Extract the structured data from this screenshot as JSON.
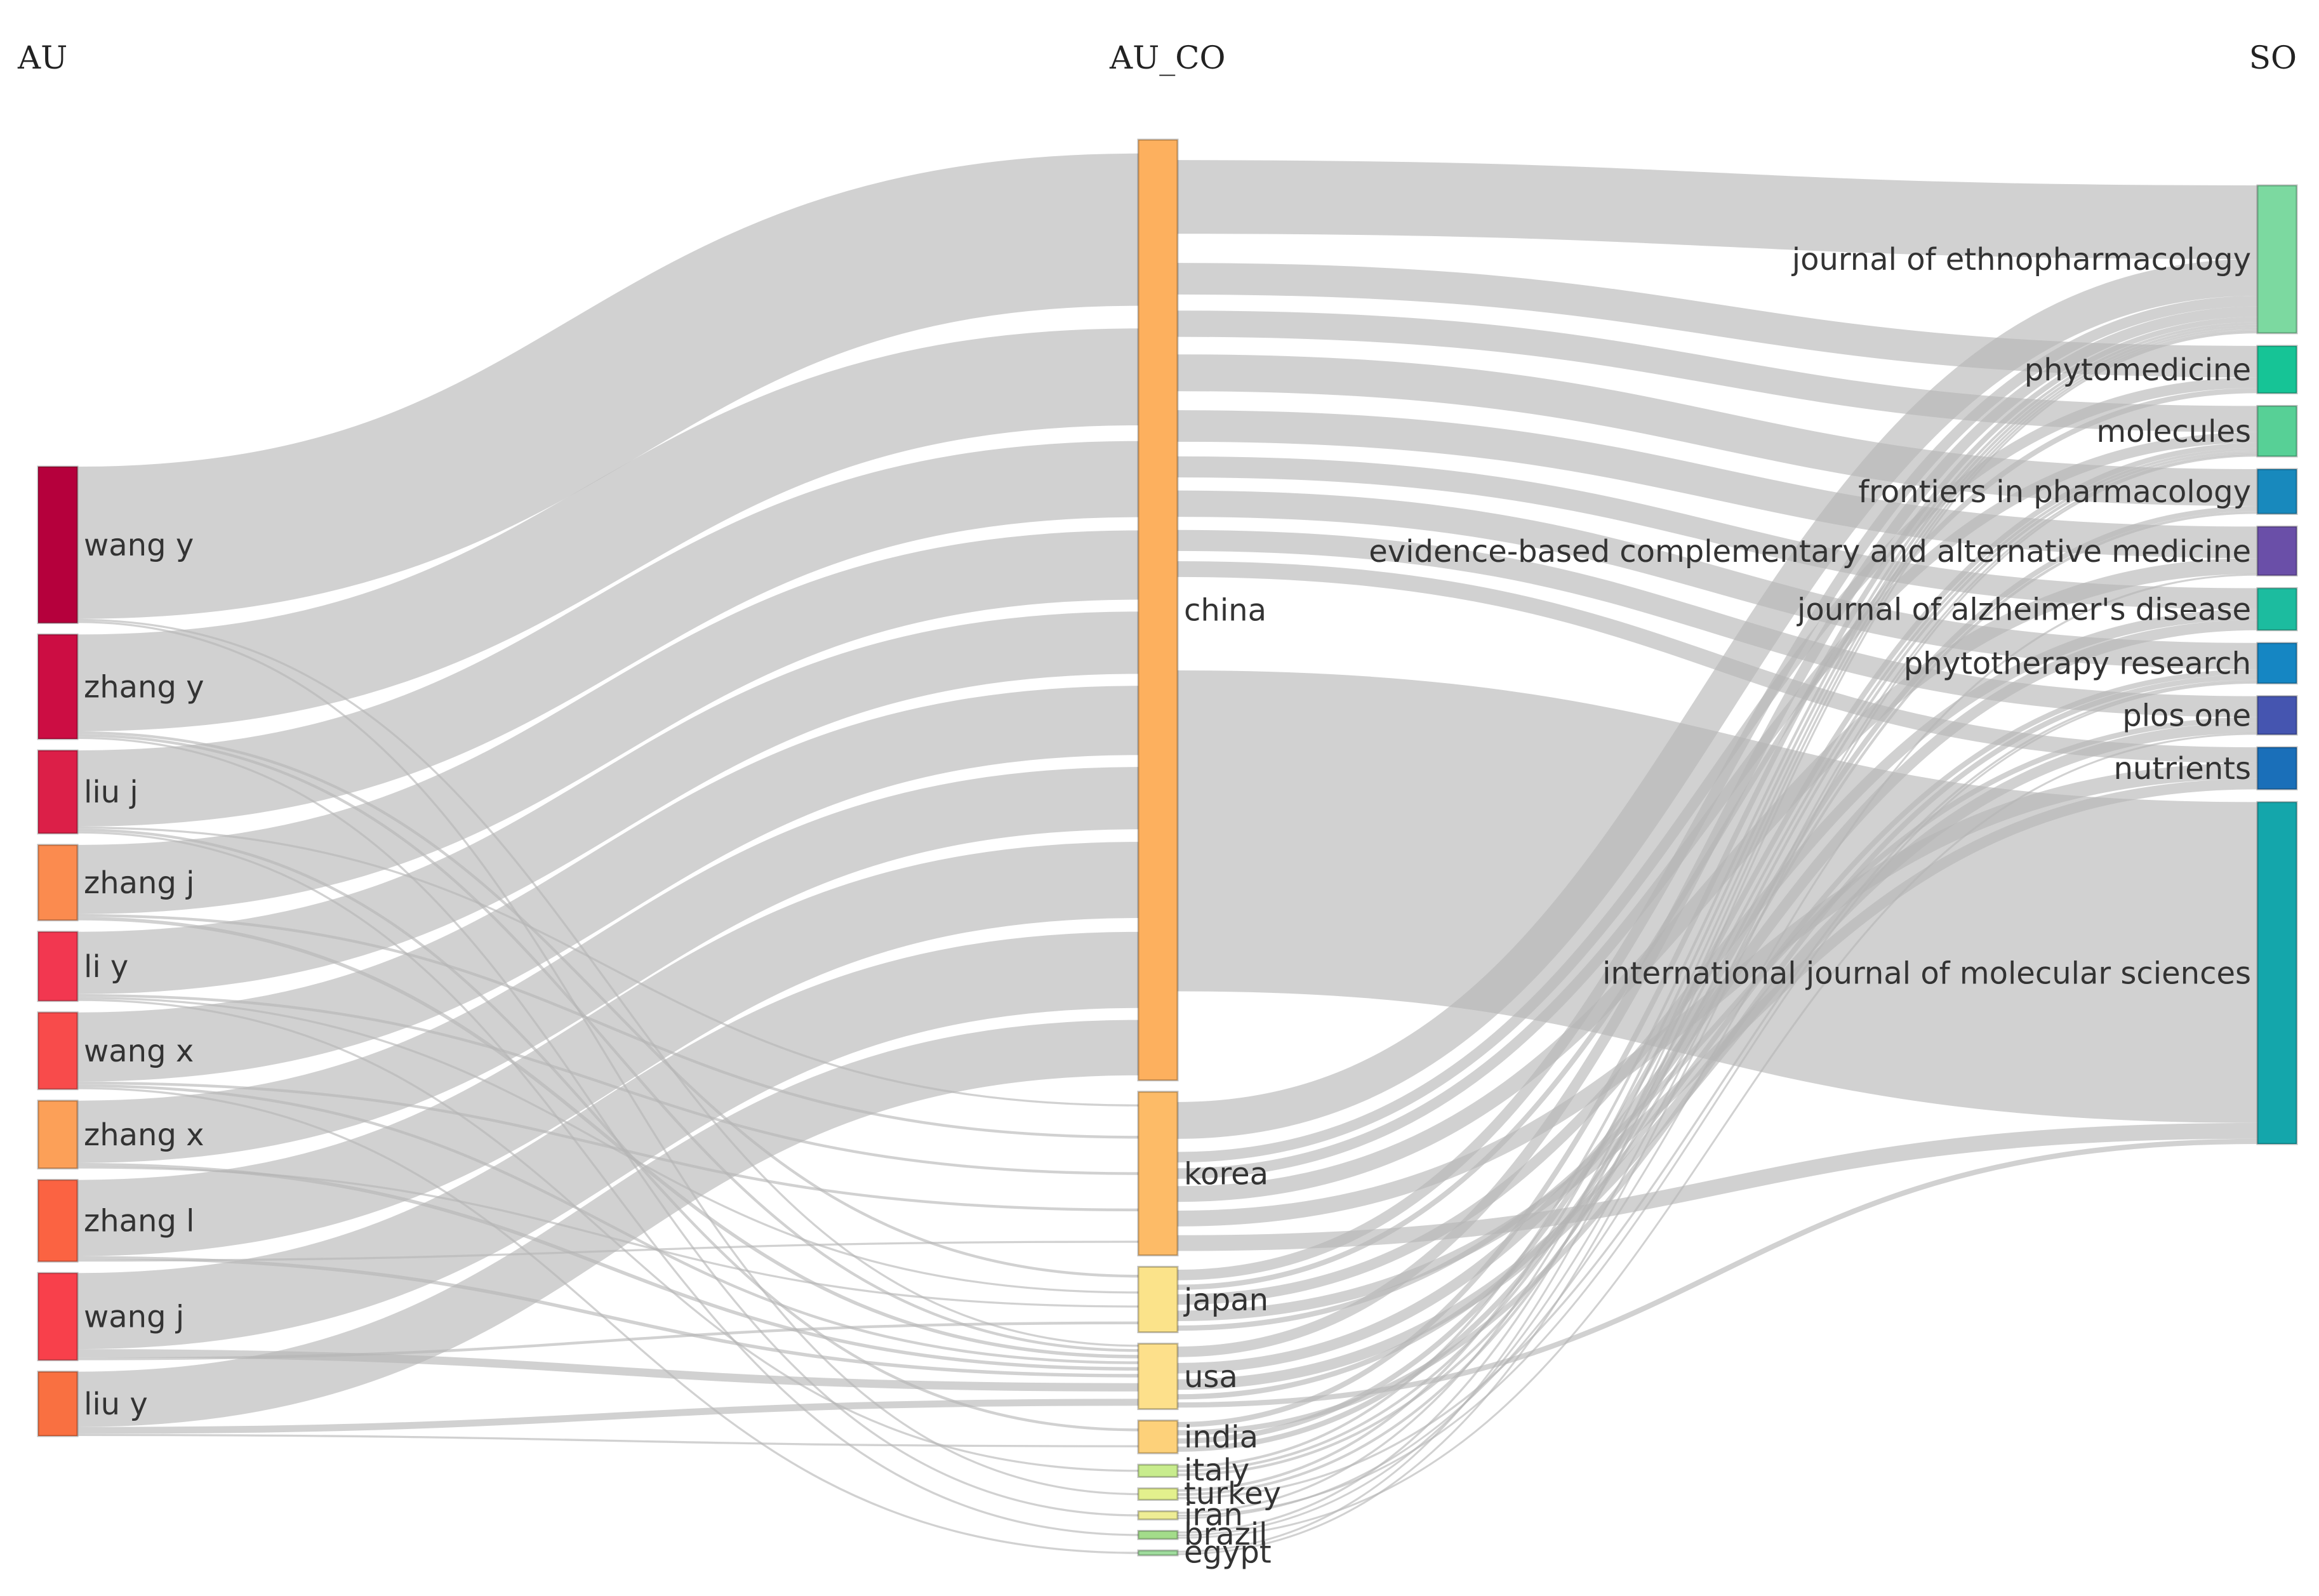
{
  "columns": [
    "AU",
    "AU_CO",
    "SO"
  ],
  "nodes": {
    "AU": [
      {
        "id": "wang y",
        "label": "wang y",
        "color": "#b5003c"
      },
      {
        "id": "zhang y",
        "label": "zhang y",
        "color": "#cc0d43"
      },
      {
        "id": "liu j",
        "label": "liu j",
        "color": "#dc1f48"
      },
      {
        "id": "zhang j",
        "label": "zhang j",
        "color": "#fb8b4f"
      },
      {
        "id": "li y",
        "label": "li y",
        "color": "#f23750"
      },
      {
        "id": "wang x",
        "label": "wang x",
        "color": "#f84b4b"
      },
      {
        "id": "zhang x",
        "label": "zhang x",
        "color": "#fca058"
      },
      {
        "id": "zhang l",
        "label": "zhang l",
        "color": "#fb6342"
      },
      {
        "id": "wang j",
        "label": "wang j",
        "color": "#f8404b"
      },
      {
        "id": "liu y",
        "label": "liu y",
        "color": "#f97041"
      }
    ],
    "AU_CO": [
      {
        "id": "china",
        "label": "china",
        "color": "#fdb05e"
      },
      {
        "id": "korea",
        "label": "korea",
        "color": "#fdbb67"
      },
      {
        "id": "japan",
        "label": "japan",
        "color": "#fbe38a"
      },
      {
        "id": "usa",
        "label": "usa",
        "color": "#fde08b"
      },
      {
        "id": "india",
        "label": "india",
        "color": "#fdd17a"
      },
      {
        "id": "italy",
        "label": "italy",
        "color": "#c8ec8d"
      },
      {
        "id": "turkey",
        "label": "turkey",
        "color": "#e3f08d"
      },
      {
        "id": "iran",
        "label": "iran",
        "color": "#eeed95"
      },
      {
        "id": "brazil",
        "label": "brazil",
        "color": "#a3dc8a"
      },
      {
        "id": "egypt",
        "label": "egypt",
        "color": "#9fdc9d"
      }
    ],
    "SO": [
      {
        "id": "journal of ethnopharmacology",
        "label": "journal of ethnopharmacology",
        "color": "#7cd9a0"
      },
      {
        "id": "phytomedicine",
        "label": "phytomedicine",
        "color": "#16c496"
      },
      {
        "id": "molecules",
        "label": "molecules",
        "color": "#57d096"
      },
      {
        "id": "frontiers in pharmacology",
        "label": "frontiers in pharmacology",
        "color": "#1889bd"
      },
      {
        "id": "evidence-based complementary and alternative medicine",
        "label": "evidence-based complementary and alternative medicine",
        "color": "#6a4fa8"
      },
      {
        "id": "journal of alzheimer's disease",
        "label": "journal of alzheimer's disease",
        "color": "#1cbc9f"
      },
      {
        "id": "phytotherapy research",
        "label": "phytotherapy research",
        "color": "#1586c3"
      },
      {
        "id": "plos one",
        "label": "plos one",
        "color": "#4555b0"
      },
      {
        "id": "nutrients",
        "label": "nutrients",
        "color": "#1a6fb9"
      },
      {
        "id": "international journal of molecular sciences",
        "label": "international journal of molecular sciences",
        "color": "#14a6ab"
      }
    ]
  },
  "links_au_to_co": [
    {
      "source": "wang y",
      "target": "china",
      "value": 22
    },
    {
      "source": "wang y",
      "target": "usa",
      "value": 0.3
    },
    {
      "source": "wang y",
      "target": "turkey",
      "value": 0.3
    },
    {
      "source": "zhang y",
      "target": "china",
      "value": 14
    },
    {
      "source": "zhang y",
      "target": "japan",
      "value": 0.4
    },
    {
      "source": "zhang y",
      "target": "usa",
      "value": 0.4
    },
    {
      "source": "zhang y",
      "target": "iran",
      "value": 0.3
    },
    {
      "source": "liu j",
      "target": "china",
      "value": 11
    },
    {
      "source": "liu j",
      "target": "korea",
      "value": 0.3
    },
    {
      "source": "liu j",
      "target": "india",
      "value": 0.4
    },
    {
      "source": "liu j",
      "target": "brazil",
      "value": 0.3
    },
    {
      "source": "zhang j",
      "target": "china",
      "value": 10
    },
    {
      "source": "zhang j",
      "target": "korea",
      "value": 0.4
    },
    {
      "source": "zhang j",
      "target": "usa",
      "value": 0.5
    },
    {
      "source": "li y",
      "target": "china",
      "value": 9
    },
    {
      "source": "li y",
      "target": "korea",
      "value": 0.4
    },
    {
      "source": "li y",
      "target": "japan",
      "value": 0.3
    },
    {
      "source": "li y",
      "target": "italy",
      "value": 0.3
    },
    {
      "source": "wang x",
      "target": "china",
      "value": 10
    },
    {
      "source": "wang x",
      "target": "korea",
      "value": 0.4
    },
    {
      "source": "wang x",
      "target": "usa",
      "value": 0.4
    },
    {
      "source": "wang x",
      "target": "egypt",
      "value": 0.3
    },
    {
      "source": "zhang x",
      "target": "china",
      "value": 9
    },
    {
      "source": "zhang x",
      "target": "usa",
      "value": 0.5
    },
    {
      "source": "zhang x",
      "target": "japan",
      "value": 0.3
    },
    {
      "source": "zhang l",
      "target": "china",
      "value": 11
    },
    {
      "source": "zhang l",
      "target": "usa",
      "value": 0.5
    },
    {
      "source": "zhang l",
      "target": "korea",
      "value": 0.3
    },
    {
      "source": "wang j",
      "target": "china",
      "value": 11
    },
    {
      "source": "wang j",
      "target": "usa",
      "value": 1.2
    },
    {
      "source": "wang j",
      "target": "japan",
      "value": 0.4
    },
    {
      "source": "liu y",
      "target": "china",
      "value": 8
    },
    {
      "source": "liu y",
      "target": "usa",
      "value": 1.0
    },
    {
      "source": "liu y",
      "target": "india",
      "value": 0.3
    }
  ],
  "links_co_to_so": [
    {
      "source": "china",
      "target": "journal of ethnopharmacology",
      "value": 14
    },
    {
      "source": "china",
      "target": "phytomedicine",
      "value": 6
    },
    {
      "source": "china",
      "target": "molecules",
      "value": 5
    },
    {
      "source": "china",
      "target": "frontiers in pharmacology",
      "value": 7
    },
    {
      "source": "china",
      "target": "evidence-based complementary and alternative medicine",
      "value": 6
    },
    {
      "source": "china",
      "target": "journal of alzheimer's disease",
      "value": 4
    },
    {
      "source": "china",
      "target": "phytotherapy research",
      "value": 5
    },
    {
      "source": "china",
      "target": "plos one",
      "value": 4
    },
    {
      "source": "china",
      "target": "nutrients",
      "value": 3
    },
    {
      "source": "china",
      "target": "international journal of molecular sciences",
      "value": 61
    },
    {
      "source": "korea",
      "target": "journal of ethnopharmacology",
      "value": 7
    },
    {
      "source": "korea",
      "target": "phytomedicine",
      "value": 2
    },
    {
      "source": "korea",
      "target": "molecules",
      "value": 2
    },
    {
      "source": "korea",
      "target": "evidence-based complementary and alternative medicine",
      "value": 3
    },
    {
      "source": "korea",
      "target": "nutrients",
      "value": 3
    },
    {
      "source": "korea",
      "target": "international journal of molecular sciences",
      "value": 3
    },
    {
      "source": "japan",
      "target": "journal of ethnopharmacology",
      "value": 2
    },
    {
      "source": "japan",
      "target": "phytomedicine",
      "value": 1
    },
    {
      "source": "japan",
      "target": "journal of alzheimer's disease",
      "value": 2
    },
    {
      "source": "japan",
      "target": "nutrients",
      "value": 2
    },
    {
      "source": "japan",
      "target": "plos one",
      "value": 1
    },
    {
      "source": "usa",
      "target": "journal of ethnopharmacology",
      "value": 2
    },
    {
      "source": "usa",
      "target": "journal of alzheimer's disease",
      "value": 2
    },
    {
      "source": "usa",
      "target": "plos one",
      "value": 2
    },
    {
      "source": "usa",
      "target": "phytotherapy research",
      "value": 1
    },
    {
      "source": "usa",
      "target": "international journal of molecular sciences",
      "value": 1
    },
    {
      "source": "india",
      "target": "journal of ethnopharmacology",
      "value": 1
    },
    {
      "source": "india",
      "target": "phytotherapy research",
      "value": 1
    },
    {
      "source": "india",
      "target": "molecules",
      "value": 1
    },
    {
      "source": "india",
      "target": "frontiers in pharmacology",
      "value": 1
    },
    {
      "source": "italy",
      "target": "journal of ethnopharmacology",
      "value": 0.5
    },
    {
      "source": "italy",
      "target": "molecules",
      "value": 0.5
    },
    {
      "source": "italy",
      "target": "frontiers in pharmacology",
      "value": 0.5
    },
    {
      "source": "turkey",
      "target": "journal of ethnopharmacology",
      "value": 0.5
    },
    {
      "source": "turkey",
      "target": "molecules",
      "value": 0.5
    },
    {
      "source": "turkey",
      "target": "phytotherapy research",
      "value": 0.4
    },
    {
      "source": "iran",
      "target": "journal of ethnopharmacology",
      "value": 0.4
    },
    {
      "source": "iran",
      "target": "phytotherapy research",
      "value": 0.3
    },
    {
      "source": "iran",
      "target": "evidence-based complementary and alternative medicine",
      "value": 0.3
    },
    {
      "source": "brazil",
      "target": "journal of ethnopharmacology",
      "value": 0.4
    },
    {
      "source": "brazil",
      "target": "molecules",
      "value": 0.3
    },
    {
      "source": "brazil",
      "target": "plos one",
      "value": 0.3
    },
    {
      "source": "egypt",
      "target": "journal of ethnopharmacology",
      "value": 0.3
    },
    {
      "source": "egypt",
      "target": "molecules",
      "value": 0.3
    }
  ]
}
